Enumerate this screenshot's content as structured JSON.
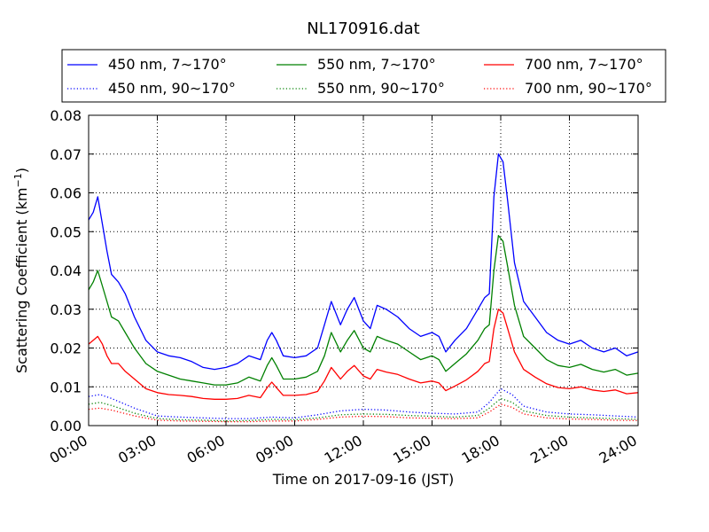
{
  "chart_data": {
    "type": "line",
    "title": "NL170916.dat",
    "xlabel": "Time on 2017-09-16 (JST)",
    "ylabel": "Scattering Coefficient (km",
    "ylabel_sup": "−1",
    "ylabel_close": ")",
    "xlim": [
      0,
      24
    ],
    "ylim": [
      0,
      0.08
    ],
    "x_ticks": [
      0,
      3,
      6,
      9,
      12,
      15,
      18,
      21,
      24
    ],
    "x_tick_labels": [
      "00:00",
      "03:00",
      "06:00",
      "09:00",
      "12:00",
      "15:00",
      "18:00",
      "21:00",
      "24:00"
    ],
    "y_ticks": [
      0,
      0.01,
      0.02,
      0.03,
      0.04,
      0.05,
      0.06,
      0.07,
      0.08
    ],
    "y_tick_labels": [
      "0.00",
      "0.01",
      "0.02",
      "0.03",
      "0.04",
      "0.05",
      "0.06",
      "0.07",
      "0.08"
    ],
    "grid": true,
    "legend_position": "top",
    "series": [
      {
        "name": "450 nm, 7∼170°",
        "color": "#0000ff",
        "dash": "solid",
        "x": [
          0,
          0.2,
          0.4,
          0.6,
          0.8,
          1,
          1.3,
          1.6,
          2,
          2.5,
          3,
          3.5,
          4,
          4.5,
          5,
          5.5,
          6,
          6.5,
          7,
          7.5,
          7.8,
          8,
          8.2,
          8.5,
          9,
          9.5,
          10,
          10.3,
          10.6,
          11,
          11.3,
          11.6,
          12,
          12.3,
          12.6,
          13,
          13.5,
          14,
          14.5,
          15,
          15.3,
          15.6,
          16,
          16.5,
          17,
          17.3,
          17.5,
          17.7,
          17.9,
          18.1,
          18.3,
          18.6,
          19,
          19.5,
          20,
          20.5,
          21,
          21.5,
          22,
          22.5,
          23,
          23.5,
          24
        ],
        "y": [
          0.053,
          0.055,
          0.059,
          0.052,
          0.045,
          0.039,
          0.037,
          0.034,
          0.028,
          0.022,
          0.019,
          0.018,
          0.0175,
          0.0165,
          0.015,
          0.0145,
          0.015,
          0.016,
          0.018,
          0.017,
          0.022,
          0.024,
          0.022,
          0.018,
          0.0175,
          0.018,
          0.02,
          0.026,
          0.032,
          0.026,
          0.03,
          0.033,
          0.027,
          0.025,
          0.031,
          0.03,
          0.028,
          0.025,
          0.023,
          0.024,
          0.023,
          0.019,
          0.022,
          0.025,
          0.03,
          0.033,
          0.034,
          0.059,
          0.07,
          0.068,
          0.058,
          0.042,
          0.032,
          0.028,
          0.024,
          0.022,
          0.021,
          0.022,
          0.02,
          0.019,
          0.02,
          0.018,
          0.019
        ]
      },
      {
        "name": "450 nm, 90∼170°",
        "color": "#0000ff",
        "dash": "dotted",
        "x": [
          0,
          0.5,
          1,
          2,
          3,
          4,
          5,
          6,
          7,
          8,
          9,
          10,
          11,
          12,
          13,
          14,
          15,
          16,
          17,
          17.5,
          18,
          18.5,
          19,
          20,
          21,
          22,
          23,
          24
        ],
        "y": [
          0.0075,
          0.008,
          0.007,
          0.0045,
          0.0025,
          0.0022,
          0.002,
          0.0018,
          0.0018,
          0.0022,
          0.002,
          0.0028,
          0.0038,
          0.0042,
          0.004,
          0.0035,
          0.0032,
          0.003,
          0.0035,
          0.006,
          0.0095,
          0.008,
          0.005,
          0.0035,
          0.003,
          0.0028,
          0.0025,
          0.0022
        ]
      },
      {
        "name": "550 nm, 7∼170°",
        "color": "#008000",
        "dash": "solid",
        "x": [
          0,
          0.2,
          0.4,
          0.6,
          0.8,
          1,
          1.3,
          1.6,
          2,
          2.5,
          3,
          3.5,
          4,
          4.5,
          5,
          5.5,
          6,
          6.5,
          7,
          7.5,
          7.8,
          8,
          8.2,
          8.5,
          9,
          9.5,
          10,
          10.3,
          10.6,
          11,
          11.3,
          11.6,
          12,
          12.3,
          12.6,
          13,
          13.5,
          14,
          14.5,
          15,
          15.3,
          15.6,
          16,
          16.5,
          17,
          17.3,
          17.5,
          17.7,
          17.9,
          18.1,
          18.3,
          18.6,
          19,
          19.5,
          20,
          20.5,
          21,
          21.5,
          22,
          22.5,
          23,
          23.5,
          24
        ],
        "y": [
          0.035,
          0.037,
          0.04,
          0.036,
          0.032,
          0.028,
          0.027,
          0.024,
          0.02,
          0.016,
          0.014,
          0.013,
          0.012,
          0.0115,
          0.011,
          0.0105,
          0.0105,
          0.011,
          0.0125,
          0.0115,
          0.0155,
          0.0175,
          0.0155,
          0.012,
          0.012,
          0.0125,
          0.014,
          0.018,
          0.024,
          0.019,
          0.022,
          0.0245,
          0.02,
          0.019,
          0.023,
          0.022,
          0.021,
          0.019,
          0.017,
          0.018,
          0.017,
          0.014,
          0.016,
          0.0185,
          0.022,
          0.025,
          0.026,
          0.04,
          0.049,
          0.0475,
          0.041,
          0.031,
          0.023,
          0.02,
          0.017,
          0.0155,
          0.015,
          0.0158,
          0.0145,
          0.0138,
          0.0145,
          0.013,
          0.0135
        ]
      },
      {
        "name": "550 nm, 90∼170°",
        "color": "#008000",
        "dash": "dotted",
        "x": [
          0,
          0.5,
          1,
          2,
          3,
          4,
          5,
          6,
          7,
          8,
          9,
          10,
          11,
          12,
          13,
          14,
          15,
          16,
          17,
          17.5,
          18,
          18.5,
          19,
          20,
          21,
          22,
          23,
          24
        ],
        "y": [
          0.0055,
          0.006,
          0.0052,
          0.0032,
          0.0018,
          0.0015,
          0.0014,
          0.0012,
          0.0013,
          0.0016,
          0.0015,
          0.002,
          0.0028,
          0.003,
          0.0029,
          0.0026,
          0.0024,
          0.0022,
          0.0026,
          0.0045,
          0.007,
          0.006,
          0.0038,
          0.0026,
          0.0022,
          0.002,
          0.0018,
          0.0016
        ]
      },
      {
        "name": "700 nm, 7∼170°",
        "color": "#ff0000",
        "dash": "solid",
        "x": [
          0,
          0.2,
          0.4,
          0.6,
          0.8,
          1,
          1.3,
          1.6,
          2,
          2.5,
          3,
          3.5,
          4,
          4.5,
          5,
          5.5,
          6,
          6.5,
          7,
          7.5,
          7.8,
          8,
          8.2,
          8.5,
          9,
          9.5,
          10,
          10.3,
          10.6,
          11,
          11.3,
          11.6,
          12,
          12.3,
          12.6,
          13,
          13.5,
          14,
          14.5,
          15,
          15.3,
          15.6,
          16,
          16.5,
          17,
          17.3,
          17.5,
          17.7,
          17.9,
          18.1,
          18.3,
          18.6,
          19,
          19.5,
          20,
          20.5,
          21,
          21.5,
          22,
          22.5,
          23,
          23.5,
          24
        ],
        "y": [
          0.021,
          0.022,
          0.023,
          0.021,
          0.018,
          0.016,
          0.016,
          0.014,
          0.012,
          0.0095,
          0.0085,
          0.008,
          0.0078,
          0.0075,
          0.007,
          0.0068,
          0.0068,
          0.007,
          0.0078,
          0.0072,
          0.0098,
          0.0112,
          0.0098,
          0.0078,
          0.0078,
          0.008,
          0.0088,
          0.0115,
          0.015,
          0.012,
          0.014,
          0.0155,
          0.0128,
          0.012,
          0.0145,
          0.0138,
          0.0132,
          0.012,
          0.011,
          0.0115,
          0.011,
          0.009,
          0.0102,
          0.0118,
          0.014,
          0.016,
          0.0165,
          0.025,
          0.03,
          0.029,
          0.025,
          0.019,
          0.0145,
          0.0125,
          0.0108,
          0.0098,
          0.0095,
          0.01,
          0.0092,
          0.0088,
          0.0092,
          0.0082,
          0.0085
        ]
      },
      {
        "name": "700 nm, 90∼170°",
        "color": "#ff0000",
        "dash": "dotted",
        "x": [
          0,
          0.5,
          1,
          2,
          3,
          4,
          5,
          6,
          7,
          8,
          9,
          10,
          11,
          12,
          13,
          14,
          15,
          16,
          17,
          17.5,
          18,
          18.5,
          19,
          20,
          21,
          22,
          23,
          24
        ],
        "y": [
          0.0042,
          0.0045,
          0.004,
          0.0025,
          0.0014,
          0.0012,
          0.0011,
          0.001,
          0.001,
          0.0012,
          0.0012,
          0.0016,
          0.0022,
          0.0024,
          0.0023,
          0.002,
          0.0019,
          0.0018,
          0.002,
          0.0035,
          0.0055,
          0.0047,
          0.003,
          0.002,
          0.0017,
          0.0016,
          0.0014,
          0.0013
        ]
      }
    ]
  }
}
